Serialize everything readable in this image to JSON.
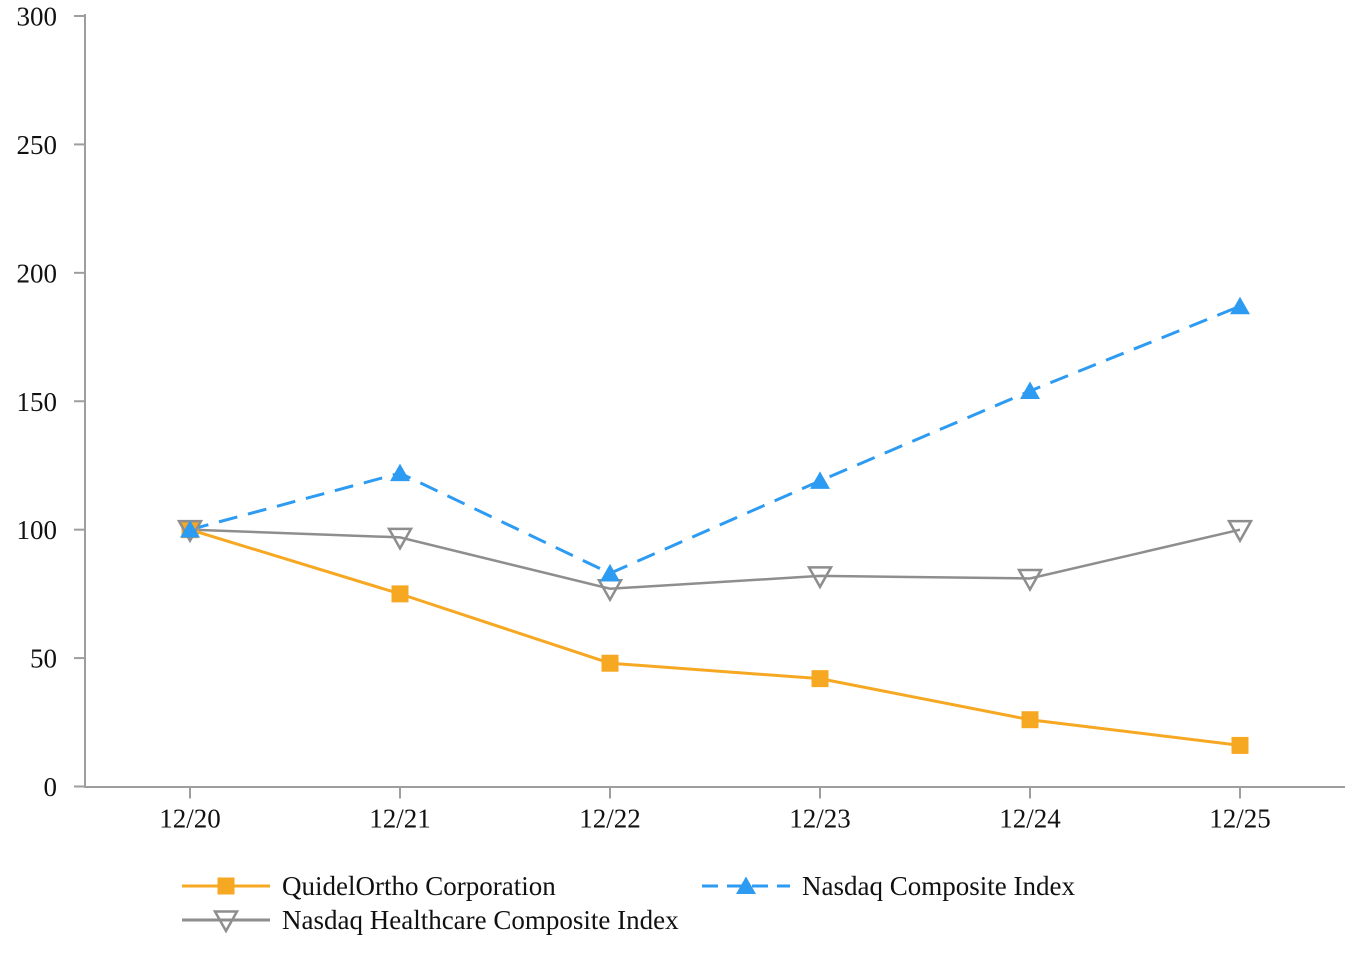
{
  "chart_data": {
    "type": "line",
    "title": "",
    "xlabel": "",
    "ylabel": "",
    "categories": [
      "12/20",
      "12/21",
      "12/22",
      "12/23",
      "12/24",
      "12/25"
    ],
    "y_ticks": [
      0,
      50,
      100,
      150,
      200,
      250,
      300
    ],
    "ylim": [
      0,
      300
    ],
    "grid": false,
    "legend_position": "bottom",
    "axis_color": "#9e9e9e",
    "text_color": "#111111",
    "series": [
      {
        "name": "QuidelOrtho Corporation",
        "values": [
          100,
          75,
          48,
          42,
          26,
          16
        ],
        "color": "#f7a823",
        "line_style": "solid",
        "marker": "filled-square"
      },
      {
        "name": "Nasdaq Composite Index",
        "values": [
          100,
          122,
          83,
          119,
          154,
          187
        ],
        "color": "#2e9bf3",
        "line_style": "dashed",
        "marker": "filled-triangle-up"
      },
      {
        "name": "Nasdaq Healthcare Composite Index",
        "values": [
          100,
          97,
          77,
          82,
          81,
          100
        ],
        "color": "#8e8e8e",
        "line_style": "solid",
        "marker": "open-triangle-down"
      }
    ]
  }
}
